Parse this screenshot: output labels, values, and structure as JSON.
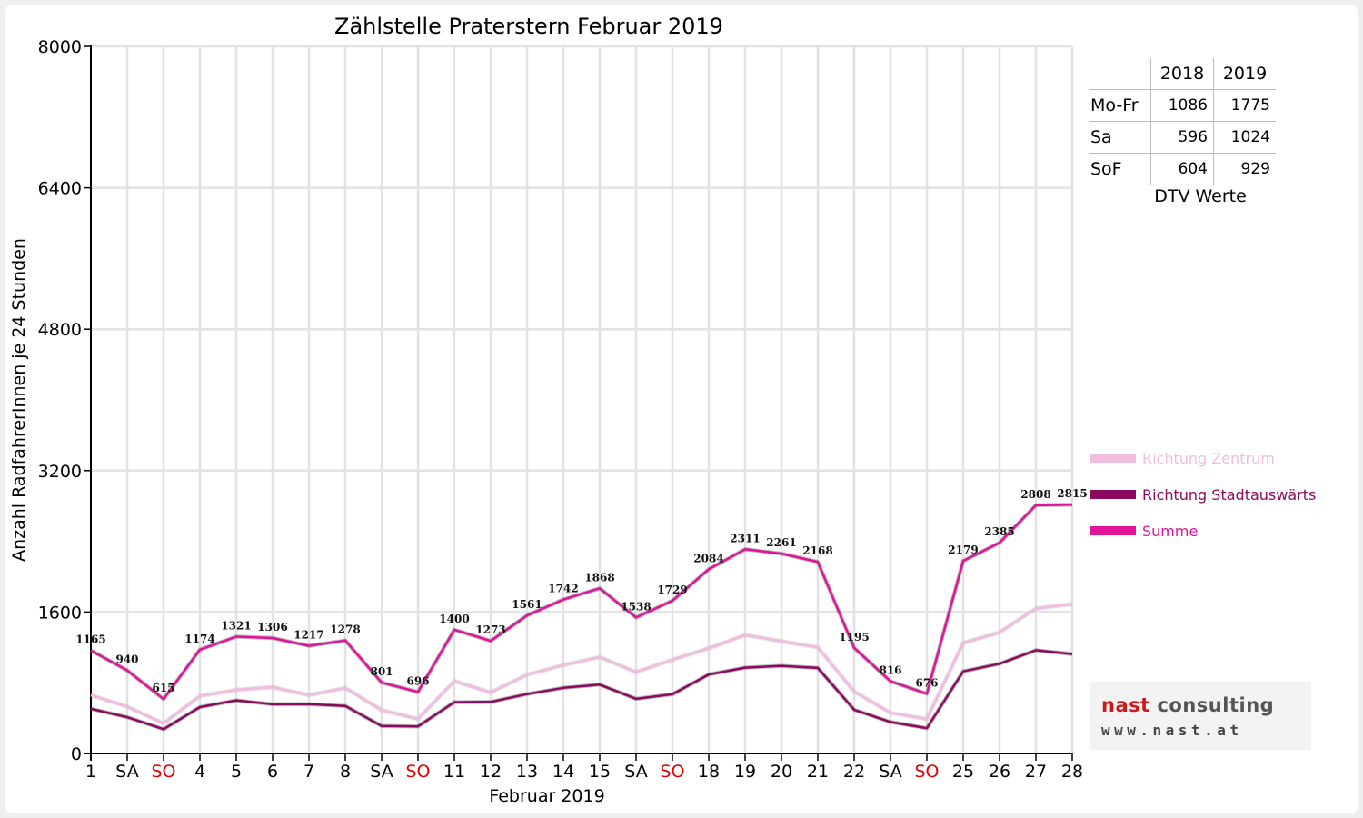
{
  "chart_data": {
    "type": "line",
    "title": "Zählstelle Praterstern Februar 2019",
    "xlabel": "Februar 2019",
    "ylabel": "Anzahl RadfahrerInnen je 24 Stunden",
    "ylim": [
      0,
      8000
    ],
    "yticks": [
      0,
      1600,
      3200,
      4800,
      6400,
      8000
    ],
    "grid": true,
    "legend_position": "right",
    "categories": [
      "1",
      "SA",
      "SO",
      "4",
      "5",
      "6",
      "7",
      "8",
      "SA",
      "SO",
      "11",
      "12",
      "13",
      "14",
      "15",
      "SA",
      "SO",
      "18",
      "19",
      "20",
      "21",
      "22",
      "SA",
      "SO",
      "25",
      "26",
      "27",
      "28"
    ],
    "highlight_categories": [
      "SO"
    ],
    "highlight_color": "#e00000",
    "series": [
      {
        "name": "Richtung Zentrum",
        "color": "#f0bde0",
        "values": [
          660,
          530,
          340,
          650,
          720,
          750,
          660,
          740,
          490,
          390,
          820,
          690,
          890,
          1000,
          1090,
          920,
          1060,
          1190,
          1340,
          1270,
          1200,
          700,
          460,
          390,
          1250,
          1370,
          1640,
          1690
        ]
      },
      {
        "name": "Richtung Stadtauswärts",
        "color": "#8b0a5f",
        "values": [
          505,
          410,
          275,
          524,
          601,
          556,
          557,
          538,
          311,
          306,
          580,
          583,
          671,
          742,
          778,
          618,
          669,
          894,
          971,
          991,
          968,
          495,
          356,
          286,
          929,
          1015,
          1168,
          1125
        ]
      },
      {
        "name": "Summe",
        "color": "#e0149a",
        "values": [
          1165,
          940,
          615,
          1174,
          1321,
          1306,
          1217,
          1278,
          801,
          696,
          1400,
          1273,
          1561,
          1742,
          1868,
          1538,
          1729,
          2084,
          2311,
          2261,
          2168,
          1195,
          816,
          676,
          2179,
          2385,
          2808,
          2815
        ],
        "data_labels": [
          "1165",
          "940",
          "615",
          "1174",
          "1321",
          "1306",
          "1217",
          "1278",
          "801",
          "696",
          "1400",
          "1273",
          "1561",
          "1742",
          "1868",
          "1538",
          "1729",
          "2084",
          "2311",
          "2261",
          "2168",
          "1195",
          "816",
          "676",
          "2179",
          "2385",
          "2808",
          "2815"
        ]
      }
    ]
  },
  "dtv_table": {
    "columns": [
      "2018",
      "2019"
    ],
    "rows": [
      {
        "label": "Mo-Fr",
        "v2018": "1086",
        "v2019": "1775"
      },
      {
        "label": "Sa",
        "v2018": "596",
        "v2019": "1024"
      },
      {
        "label": "SoF",
        "v2018": "604",
        "v2019": "929"
      }
    ],
    "caption": "DTV Werte"
  },
  "logo": {
    "name_part1": "nast",
    "name_part2": " consulting",
    "url": "www.nast.at"
  }
}
